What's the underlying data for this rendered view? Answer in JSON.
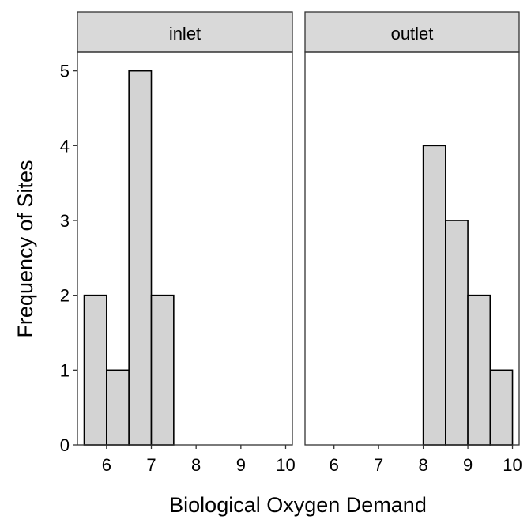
{
  "chart_data": {
    "type": "bar",
    "xlabel": "Biological Oxygen Demand",
    "ylabel": "Frequency of Sites",
    "xlim": [
      5.35,
      10.15
    ],
    "ylim": [
      0,
      5.25
    ],
    "x_ticks": [
      6,
      7,
      8,
      9,
      10
    ],
    "y_ticks": [
      0,
      1,
      2,
      3,
      4,
      5
    ],
    "bin_width": 0.5,
    "bar_fill": "#d3d3d3",
    "bar_stroke": "#000000",
    "strip_fill": "#d9d9d9",
    "grid": false,
    "panels": [
      {
        "label": "inlet",
        "bins": [
          {
            "x0": 5.5,
            "x1": 6.0,
            "count": 2
          },
          {
            "x0": 6.0,
            "x1": 6.5,
            "count": 1
          },
          {
            "x0": 6.5,
            "x1": 7.0,
            "count": 5
          },
          {
            "x0": 7.0,
            "x1": 7.5,
            "count": 2
          }
        ]
      },
      {
        "label": "outlet",
        "bins": [
          {
            "x0": 8.0,
            "x1": 8.5,
            "count": 4
          },
          {
            "x0": 8.5,
            "x1": 9.0,
            "count": 3
          },
          {
            "x0": 9.0,
            "x1": 9.5,
            "count": 2
          },
          {
            "x0": 9.5,
            "x1": 10.0,
            "count": 1
          }
        ]
      }
    ]
  }
}
